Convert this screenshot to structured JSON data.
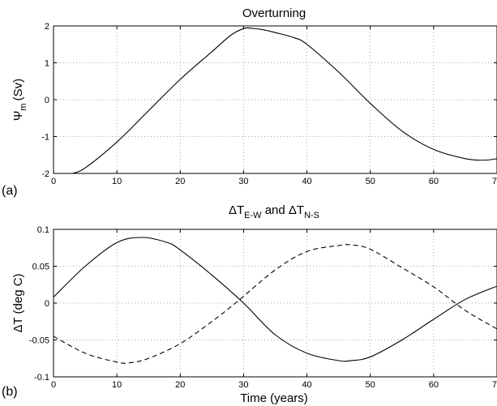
{
  "chart_data": [
    {
      "type": "line",
      "title": "Overturning",
      "ylabel": "Ψ",
      "ylabel_sub": "m",
      "ylabel_unit": "(Sv)",
      "panel_tag": "(a)",
      "xlabel": "",
      "xlim": [
        0,
        70
      ],
      "ylim": [
        -2,
        2
      ],
      "grid": true,
      "xticks": [
        0,
        10,
        20,
        30,
        40,
        50,
        60,
        70
      ],
      "xtick_labels": [
        "0",
        "10",
        "20",
        "30",
        "40",
        "50",
        "60",
        "70"
      ],
      "yticks": [
        -2,
        -1,
        0,
        1,
        2
      ],
      "ytick_labels": [
        "-2",
        "-1",
        "0",
        "1",
        "2"
      ],
      "series": [
        {
          "style": "solid",
          "x": [
            3,
            5,
            10,
            15,
            20,
            25,
            28,
            30,
            31,
            33,
            35,
            38,
            40,
            45,
            50,
            55,
            60,
            65,
            68,
            70
          ],
          "y": [
            -2.0,
            -1.85,
            -1.15,
            -0.3,
            0.55,
            1.3,
            1.75,
            1.93,
            1.94,
            1.9,
            1.82,
            1.68,
            1.5,
            0.75,
            -0.1,
            -0.85,
            -1.35,
            -1.6,
            -1.64,
            -1.6
          ]
        }
      ]
    },
    {
      "type": "line",
      "title": "ΔT",
      "title_sub1": "E-W",
      "title_mid": " and ΔT",
      "title_sub2": "N-S",
      "ylabel": "ΔT (deg C)",
      "panel_tag": "(b)",
      "xlabel": "Time (years)",
      "xlim": [
        0,
        70
      ],
      "ylim": [
        -0.1,
        0.1
      ],
      "grid": true,
      "xticks": [
        0,
        10,
        20,
        30,
        40,
        50,
        60,
        70
      ],
      "xtick_labels": [
        "0",
        "10",
        "20",
        "30",
        "40",
        "50",
        "60",
        "70"
      ],
      "yticks": [
        -0.1,
        -0.05,
        0,
        0.05,
        0.1
      ],
      "ytick_labels": [
        "-0.1",
        "-0.05",
        "0",
        "0.05",
        "0.1"
      ],
      "series": [
        {
          "style": "solid",
          "x": [
            0,
            5,
            10,
            14,
            18,
            20,
            25,
            30,
            35,
            40,
            45,
            47,
            50,
            55,
            60,
            65,
            70
          ],
          "y": [
            0.008,
            0.05,
            0.082,
            0.089,
            0.082,
            0.072,
            0.038,
            0.0,
            -0.043,
            -0.068,
            -0.078,
            -0.078,
            -0.073,
            -0.05,
            -0.022,
            0.005,
            0.023
          ]
        },
        {
          "style": "dashed",
          "x": [
            0,
            5,
            10,
            12,
            15,
            20,
            25,
            29,
            35,
            40,
            45,
            47,
            50,
            55,
            60,
            65,
            70
          ],
          "y": [
            -0.045,
            -0.068,
            -0.08,
            -0.081,
            -0.075,
            -0.055,
            -0.025,
            0.002,
            0.045,
            0.07,
            0.078,
            0.079,
            0.073,
            0.048,
            0.022,
            -0.01,
            -0.035
          ]
        }
      ]
    }
  ]
}
